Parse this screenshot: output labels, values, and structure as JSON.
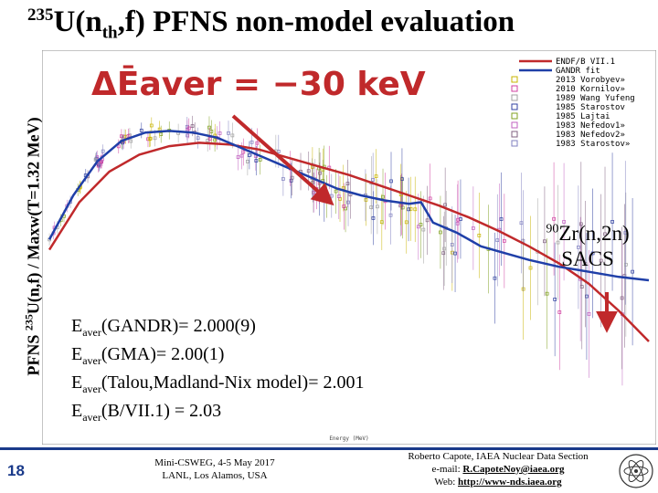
{
  "slide": {
    "title_sup": "235",
    "title_main": "U(n",
    "title_sub": "th",
    "title_end": ",f) PFNS non-model evaluation",
    "ylabel_pre": "PFNS ",
    "ylabel_sup": "235",
    "ylabel_main": "U(n,f) / Maxw(T=1.32 MeV)",
    "delta_text": "ΔĒaver = −30 keV",
    "zr_sup": "90",
    "zr_main": "Zr(n,2n)",
    "zr_line2": "SACS",
    "eaver_lines": [
      {
        "sym": "E",
        "sub": "aver",
        "text": "(GANDR)= 2.000(9)"
      },
      {
        "sym": "E",
        "sub": "aver",
        "text": "(GMA)= 2.00(1)"
      },
      {
        "sym": "E",
        "sub": "aver",
        "text": "(Talou,Madland-Nix model)= 2.001"
      },
      {
        "sym": "E",
        "sub": "aver",
        "text": "(B/VII.1)  = 2.03"
      }
    ],
    "page_number": "18",
    "footer_mid_1": "Mini-CSWEG, 4-5 May 2017",
    "footer_mid_2": "LANL, Los Alamos, USA",
    "footer_right_1": "Roberto Capote, IAEA Nuclear Data Section",
    "footer_right_2_label": "e-mail: ",
    "footer_right_2_link": "R.CapoteNoy@iaea.org",
    "footer_right_3_label": "Web:   ",
    "footer_right_3_link": "http://www-nds.iaea.org"
  },
  "chart_data": {
    "type": "line",
    "xlabel": "Energy (MeV)",
    "legend_position": "top-right",
    "legend": [
      {
        "name": "ENDF/B VII.1",
        "color": "#c0292b",
        "kind": "line"
      },
      {
        "name": "GANDR fit",
        "color": "#1f3fa8",
        "kind": "line"
      },
      {
        "name": "2013 Vorobyev»",
        "color": "#c8b400",
        "kind": "marker"
      },
      {
        "name": "2010 Kornilov»",
        "color": "#d040a0",
        "kind": "marker"
      },
      {
        "name": "1989 Wang Yufeng",
        "color": "#a0a0a0",
        "kind": "marker"
      },
      {
        "name": "1985 Starostov",
        "color": "#3040a0",
        "kind": "marker"
      },
      {
        "name": "1985 Lajtai",
        "color": "#80a020",
        "kind": "marker"
      },
      {
        "name": "1983 Nefedov1»",
        "color": "#c060c0",
        "kind": "marker"
      },
      {
        "name": "1983 Nefedov2»",
        "color": "#806080",
        "kind": "marker"
      },
      {
        "name": "1983 Starostov»",
        "color": "#8080c0",
        "kind": "marker"
      }
    ],
    "series": [
      {
        "name": "ENDF/B VII.1",
        "color": "#c0292b",
        "points": [
          [
            0.0,
            0.52
          ],
          [
            0.05,
            0.66
          ],
          [
            0.1,
            0.75
          ],
          [
            0.15,
            0.8
          ],
          [
            0.2,
            0.825
          ],
          [
            0.25,
            0.835
          ],
          [
            0.3,
            0.83
          ],
          [
            0.35,
            0.815
          ],
          [
            0.4,
            0.79
          ],
          [
            0.45,
            0.765
          ],
          [
            0.5,
            0.74
          ],
          [
            0.55,
            0.71
          ],
          [
            0.6,
            0.68
          ],
          [
            0.65,
            0.65
          ],
          [
            0.7,
            0.615
          ],
          [
            0.75,
            0.575
          ],
          [
            0.8,
            0.53
          ],
          [
            0.85,
            0.48
          ],
          [
            0.9,
            0.42
          ],
          [
            0.95,
            0.34
          ],
          [
            1.0,
            0.25
          ]
        ]
      },
      {
        "name": "GANDR fit",
        "color": "#1f3fa8",
        "points": [
          [
            0.0,
            0.55
          ],
          [
            0.04,
            0.68
          ],
          [
            0.08,
            0.78
          ],
          [
            0.12,
            0.84
          ],
          [
            0.16,
            0.865
          ],
          [
            0.2,
            0.87
          ],
          [
            0.24,
            0.865
          ],
          [
            0.28,
            0.85
          ],
          [
            0.32,
            0.82
          ],
          [
            0.36,
            0.79
          ],
          [
            0.4,
            0.76
          ],
          [
            0.44,
            0.73
          ],
          [
            0.48,
            0.7
          ],
          [
            0.52,
            0.68
          ],
          [
            0.56,
            0.665
          ],
          [
            0.6,
            0.655
          ],
          [
            0.62,
            0.66
          ],
          [
            0.64,
            0.6
          ],
          [
            0.68,
            0.57
          ],
          [
            0.72,
            0.53
          ],
          [
            0.76,
            0.51
          ],
          [
            0.8,
            0.49
          ],
          [
            0.85,
            0.47
          ],
          [
            0.9,
            0.455
          ],
          [
            0.95,
            0.44
          ],
          [
            1.0,
            0.43
          ]
        ]
      }
    ]
  }
}
